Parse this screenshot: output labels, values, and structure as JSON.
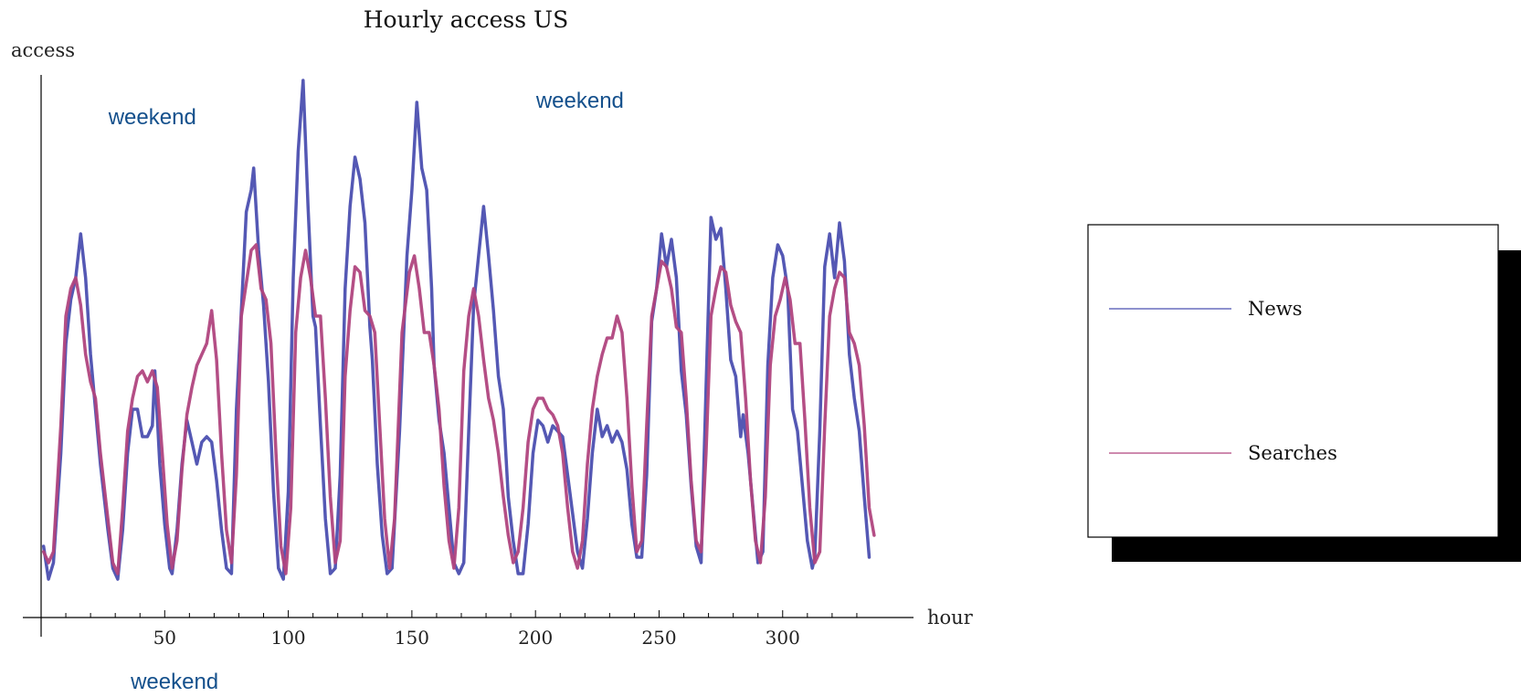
{
  "chart_data": {
    "type": "line",
    "title": "Hourly access US",
    "xlabel": "hour",
    "ylabel": "access",
    "xlim": [
      0,
      340
    ],
    "ylim": [
      0,
      100
    ],
    "x_ticks": [
      50,
      100,
      150,
      200,
      250,
      300
    ],
    "y_ticks_labeled": false,
    "grid": false,
    "legend_position": "right",
    "annotations": [
      {
        "text": "weekend",
        "x": 45,
        "y": 90
      },
      {
        "text": "weekend",
        "x": 218,
        "y": 93
      },
      {
        "text": "weekend",
        "x": 54,
        "y": -13
      }
    ],
    "series": [
      {
        "name": "News",
        "color": "#4b4fb0",
        "points": [
          [
            1,
            13
          ],
          [
            3,
            7
          ],
          [
            5,
            10
          ],
          [
            8,
            30
          ],
          [
            10,
            50
          ],
          [
            12,
            58
          ],
          [
            14,
            62
          ],
          [
            16,
            70
          ],
          [
            18,
            62
          ],
          [
            20,
            48
          ],
          [
            22,
            38
          ],
          [
            24,
            28
          ],
          [
            27,
            16
          ],
          [
            29,
            9
          ],
          [
            31,
            7
          ],
          [
            33,
            16
          ],
          [
            35,
            30
          ],
          [
            37,
            38
          ],
          [
            39,
            38
          ],
          [
            41,
            33
          ],
          [
            43,
            33
          ],
          [
            45,
            35
          ],
          [
            46,
            45
          ],
          [
            48,
            28
          ],
          [
            50,
            17
          ],
          [
            52,
            9
          ],
          [
            53,
            8
          ],
          [
            55,
            16
          ],
          [
            57,
            28
          ],
          [
            59,
            36
          ],
          [
            61,
            32
          ],
          [
            63,
            28
          ],
          [
            65,
            32
          ],
          [
            67,
            33
          ],
          [
            69,
            32
          ],
          [
            71,
            25
          ],
          [
            73,
            16
          ],
          [
            75,
            9
          ],
          [
            77,
            8
          ],
          [
            79,
            38
          ],
          [
            81,
            56
          ],
          [
            83,
            74
          ],
          [
            85,
            78
          ],
          [
            86,
            82
          ],
          [
            88,
            67
          ],
          [
            90,
            57
          ],
          [
            92,
            43
          ],
          [
            94,
            23
          ],
          [
            96,
            9
          ],
          [
            98,
            7
          ],
          [
            100,
            23
          ],
          [
            102,
            62
          ],
          [
            104,
            85
          ],
          [
            106,
            98
          ],
          [
            108,
            75
          ],
          [
            110,
            55
          ],
          [
            111,
            53
          ],
          [
            113,
            35
          ],
          [
            115,
            18
          ],
          [
            117,
            8
          ],
          [
            119,
            9
          ],
          [
            121,
            26
          ],
          [
            123,
            60
          ],
          [
            125,
            75
          ],
          [
            127,
            84
          ],
          [
            129,
            80
          ],
          [
            131,
            72
          ],
          [
            133,
            53
          ],
          [
            134,
            47
          ],
          [
            136,
            28
          ],
          [
            138,
            15
          ],
          [
            140,
            8
          ],
          [
            142,
            9
          ],
          [
            145,
            34
          ],
          [
            148,
            66
          ],
          [
            150,
            78
          ],
          [
            152,
            94
          ],
          [
            154,
            82
          ],
          [
            156,
            78
          ],
          [
            158,
            60
          ],
          [
            159,
            46
          ],
          [
            161,
            36
          ],
          [
            163,
            30
          ],
          [
            165,
            20
          ],
          [
            167,
            10
          ],
          [
            169,
            8
          ],
          [
            171,
            10
          ],
          [
            173,
            34
          ],
          [
            175,
            57
          ],
          [
            177,
            66
          ],
          [
            179,
            75
          ],
          [
            181,
            66
          ],
          [
            183,
            56
          ],
          [
            185,
            44
          ],
          [
            187,
            38
          ],
          [
            189,
            22
          ],
          [
            191,
            14
          ],
          [
            193,
            8
          ],
          [
            195,
            8
          ],
          [
            197,
            17
          ],
          [
            199,
            30
          ],
          [
            201,
            36
          ],
          [
            203,
            35
          ],
          [
            205,
            32
          ],
          [
            207,
            35
          ],
          [
            209,
            34
          ],
          [
            211,
            33
          ],
          [
            213,
            26
          ],
          [
            215,
            19
          ],
          [
            217,
            12
          ],
          [
            219,
            9
          ],
          [
            221,
            18
          ],
          [
            223,
            30
          ],
          [
            225,
            38
          ],
          [
            227,
            33
          ],
          [
            229,
            35
          ],
          [
            231,
            32
          ],
          [
            233,
            34
          ],
          [
            235,
            32
          ],
          [
            237,
            27
          ],
          [
            239,
            17
          ],
          [
            241,
            11
          ],
          [
            243,
            11
          ],
          [
            245,
            26
          ],
          [
            247,
            54
          ],
          [
            249,
            60
          ],
          [
            251,
            70
          ],
          [
            253,
            64
          ],
          [
            255,
            69
          ],
          [
            257,
            62
          ],
          [
            259,
            45
          ],
          [
            261,
            37
          ],
          [
            263,
            24
          ],
          [
            265,
            13
          ],
          [
            267,
            10
          ],
          [
            269,
            42
          ],
          [
            271,
            73
          ],
          [
            273,
            69
          ],
          [
            275,
            71
          ],
          [
            277,
            60
          ],
          [
            279,
            47
          ],
          [
            281,
            44
          ],
          [
            283,
            33
          ],
          [
            284,
            37
          ],
          [
            286,
            30
          ],
          [
            288,
            20
          ],
          [
            290,
            10
          ],
          [
            292,
            12
          ],
          [
            294,
            46
          ],
          [
            296,
            62
          ],
          [
            298,
            68
          ],
          [
            300,
            66
          ],
          [
            302,
            60
          ],
          [
            304,
            38
          ],
          [
            306,
            34
          ],
          [
            308,
            24
          ],
          [
            310,
            14
          ],
          [
            312,
            9
          ],
          [
            313,
            11
          ],
          [
            315,
            34
          ],
          [
            317,
            64
          ],
          [
            319,
            70
          ],
          [
            321,
            62
          ],
          [
            323,
            72
          ],
          [
            325,
            65
          ],
          [
            327,
            48
          ],
          [
            329,
            40
          ],
          [
            331,
            34
          ],
          [
            333,
            22
          ],
          [
            335,
            11
          ]
        ]
      },
      {
        "name": "Searches",
        "color": "#b0457e",
        "points": [
          [
            1,
            12
          ],
          [
            3,
            10
          ],
          [
            5,
            12
          ],
          [
            8,
            35
          ],
          [
            10,
            55
          ],
          [
            12,
            60
          ],
          [
            14,
            62
          ],
          [
            16,
            57
          ],
          [
            18,
            48
          ],
          [
            20,
            43
          ],
          [
            22,
            40
          ],
          [
            24,
            30
          ],
          [
            27,
            18
          ],
          [
            29,
            10
          ],
          [
            31,
            8
          ],
          [
            33,
            20
          ],
          [
            35,
            34
          ],
          [
            37,
            40
          ],
          [
            39,
            44
          ],
          [
            41,
            45
          ],
          [
            43,
            43
          ],
          [
            45,
            45
          ],
          [
            47,
            42
          ],
          [
            49,
            30
          ],
          [
            51,
            17
          ],
          [
            53,
            9
          ],
          [
            55,
            14
          ],
          [
            57,
            27
          ],
          [
            59,
            37
          ],
          [
            61,
            42
          ],
          [
            63,
            46
          ],
          [
            65,
            48
          ],
          [
            67,
            50
          ],
          [
            69,
            56
          ],
          [
            71,
            47
          ],
          [
            73,
            30
          ],
          [
            75,
            16
          ],
          [
            77,
            10
          ],
          [
            79,
            26
          ],
          [
            81,
            55
          ],
          [
            83,
            61
          ],
          [
            85,
            67
          ],
          [
            87,
            68
          ],
          [
            89,
            60
          ],
          [
            91,
            58
          ],
          [
            93,
            50
          ],
          [
            95,
            30
          ],
          [
            97,
            13
          ],
          [
            99,
            8
          ],
          [
            101,
            20
          ],
          [
            103,
            52
          ],
          [
            105,
            62
          ],
          [
            107,
            67
          ],
          [
            109,
            62
          ],
          [
            111,
            55
          ],
          [
            113,
            55
          ],
          [
            115,
            40
          ],
          [
            117,
            22
          ],
          [
            119,
            10
          ],
          [
            121,
            14
          ],
          [
            123,
            44
          ],
          [
            125,
            56
          ],
          [
            127,
            64
          ],
          [
            129,
            63
          ],
          [
            131,
            56
          ],
          [
            133,
            55
          ],
          [
            135,
            52
          ],
          [
            137,
            35
          ],
          [
            139,
            18
          ],
          [
            141,
            9
          ],
          [
            143,
            18
          ],
          [
            146,
            52
          ],
          [
            149,
            63
          ],
          [
            151,
            66
          ],
          [
            153,
            60
          ],
          [
            155,
            52
          ],
          [
            157,
            52
          ],
          [
            159,
            46
          ],
          [
            161,
            38
          ],
          [
            163,
            24
          ],
          [
            165,
            14
          ],
          [
            167,
            9
          ],
          [
            169,
            20
          ],
          [
            171,
            45
          ],
          [
            173,
            55
          ],
          [
            175,
            60
          ],
          [
            177,
            55
          ],
          [
            179,
            47
          ],
          [
            181,
            40
          ],
          [
            183,
            36
          ],
          [
            185,
            30
          ],
          [
            187,
            22
          ],
          [
            189,
            15
          ],
          [
            191,
            10
          ],
          [
            193,
            12
          ],
          [
            195,
            20
          ],
          [
            197,
            32
          ],
          [
            199,
            38
          ],
          [
            201,
            40
          ],
          [
            203,
            40
          ],
          [
            205,
            38
          ],
          [
            207,
            37
          ],
          [
            209,
            35
          ],
          [
            211,
            30
          ],
          [
            213,
            20
          ],
          [
            215,
            12
          ],
          [
            217,
            9
          ],
          [
            219,
            14
          ],
          [
            221,
            28
          ],
          [
            223,
            38
          ],
          [
            225,
            44
          ],
          [
            227,
            48
          ],
          [
            229,
            51
          ],
          [
            231,
            51
          ],
          [
            233,
            55
          ],
          [
            235,
            52
          ],
          [
            237,
            40
          ],
          [
            239,
            24
          ],
          [
            241,
            12
          ],
          [
            243,
            14
          ],
          [
            245,
            35
          ],
          [
            247,
            55
          ],
          [
            249,
            60
          ],
          [
            251,
            65
          ],
          [
            253,
            64
          ],
          [
            255,
            60
          ],
          [
            257,
            53
          ],
          [
            259,
            52
          ],
          [
            261,
            40
          ],
          [
            263,
            25
          ],
          [
            265,
            14
          ],
          [
            267,
            12
          ],
          [
            269,
            30
          ],
          [
            271,
            55
          ],
          [
            273,
            60
          ],
          [
            275,
            64
          ],
          [
            277,
            63
          ],
          [
            279,
            57
          ],
          [
            281,
            54
          ],
          [
            283,
            52
          ],
          [
            285,
            40
          ],
          [
            287,
            25
          ],
          [
            289,
            14
          ],
          [
            291,
            10
          ],
          [
            293,
            22
          ],
          [
            295,
            46
          ],
          [
            297,
            55
          ],
          [
            299,
            58
          ],
          [
            301,
            62
          ],
          [
            303,
            58
          ],
          [
            305,
            50
          ],
          [
            307,
            50
          ],
          [
            309,
            36
          ],
          [
            311,
            20
          ],
          [
            313,
            10
          ],
          [
            315,
            12
          ],
          [
            317,
            35
          ],
          [
            319,
            55
          ],
          [
            321,
            60
          ],
          [
            323,
            63
          ],
          [
            325,
            62
          ],
          [
            327,
            52
          ],
          [
            329,
            50
          ],
          [
            331,
            46
          ],
          [
            333,
            35
          ],
          [
            335,
            20
          ],
          [
            337,
            15
          ]
        ]
      }
    ]
  }
}
